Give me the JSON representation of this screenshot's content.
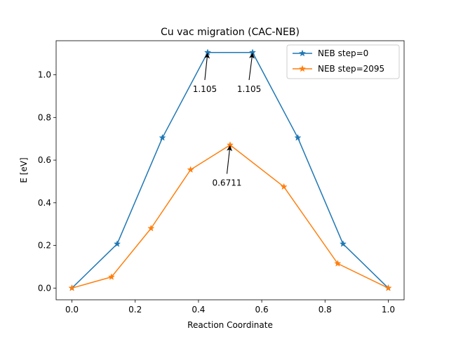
{
  "chart_data": {
    "type": "line",
    "title": "Cu vac migration (CAC-NEB)",
    "xlabel": "Reaction Coordinate",
    "ylabel": "E [eV]",
    "xlim": [
      -0.05,
      1.05
    ],
    "ylim": [
      -0.055,
      1.16
    ],
    "xticks": [
      0.0,
      0.2,
      0.4,
      0.6,
      0.8,
      1.0
    ],
    "xtick_labels": [
      "0.0",
      "0.2",
      "0.4",
      "0.6",
      "0.8",
      "1.0"
    ],
    "yticks": [
      0.0,
      0.2,
      0.4,
      0.6,
      0.8,
      1.0
    ],
    "ytick_labels": [
      "0.0",
      "0.2",
      "0.4",
      "0.6",
      "0.8",
      "1.0"
    ],
    "grid": false,
    "legend_position": "top-right",
    "series": [
      {
        "name": "NEB step=0",
        "color": "#1f77b4",
        "marker": "star",
        "x": [
          0.0,
          0.143,
          0.286,
          0.429,
          0.571,
          0.714,
          0.857,
          1.0
        ],
        "y": [
          0.0,
          0.207,
          0.705,
          1.105,
          1.105,
          0.705,
          0.207,
          0.0
        ]
      },
      {
        "name": "NEB step=2095",
        "color": "#ff7f0e",
        "marker": "star",
        "x": [
          0.0,
          0.125,
          0.25,
          0.375,
          0.5,
          0.67,
          0.84,
          1.0
        ],
        "y": [
          0.0,
          0.052,
          0.28,
          0.555,
          0.6711,
          0.475,
          0.115,
          0.0
        ]
      }
    ],
    "annotations": [
      {
        "text": "1.105",
        "point_x": 0.429,
        "point_y": 1.105,
        "text_x": 0.42,
        "text_y": 0.92
      },
      {
        "text": "1.105",
        "point_x": 0.571,
        "point_y": 1.105,
        "text_x": 0.56,
        "text_y": 0.92
      },
      {
        "text": "0.6711",
        "point_x": 0.5,
        "point_y": 0.6711,
        "text_x": 0.49,
        "text_y": 0.48
      }
    ]
  }
}
